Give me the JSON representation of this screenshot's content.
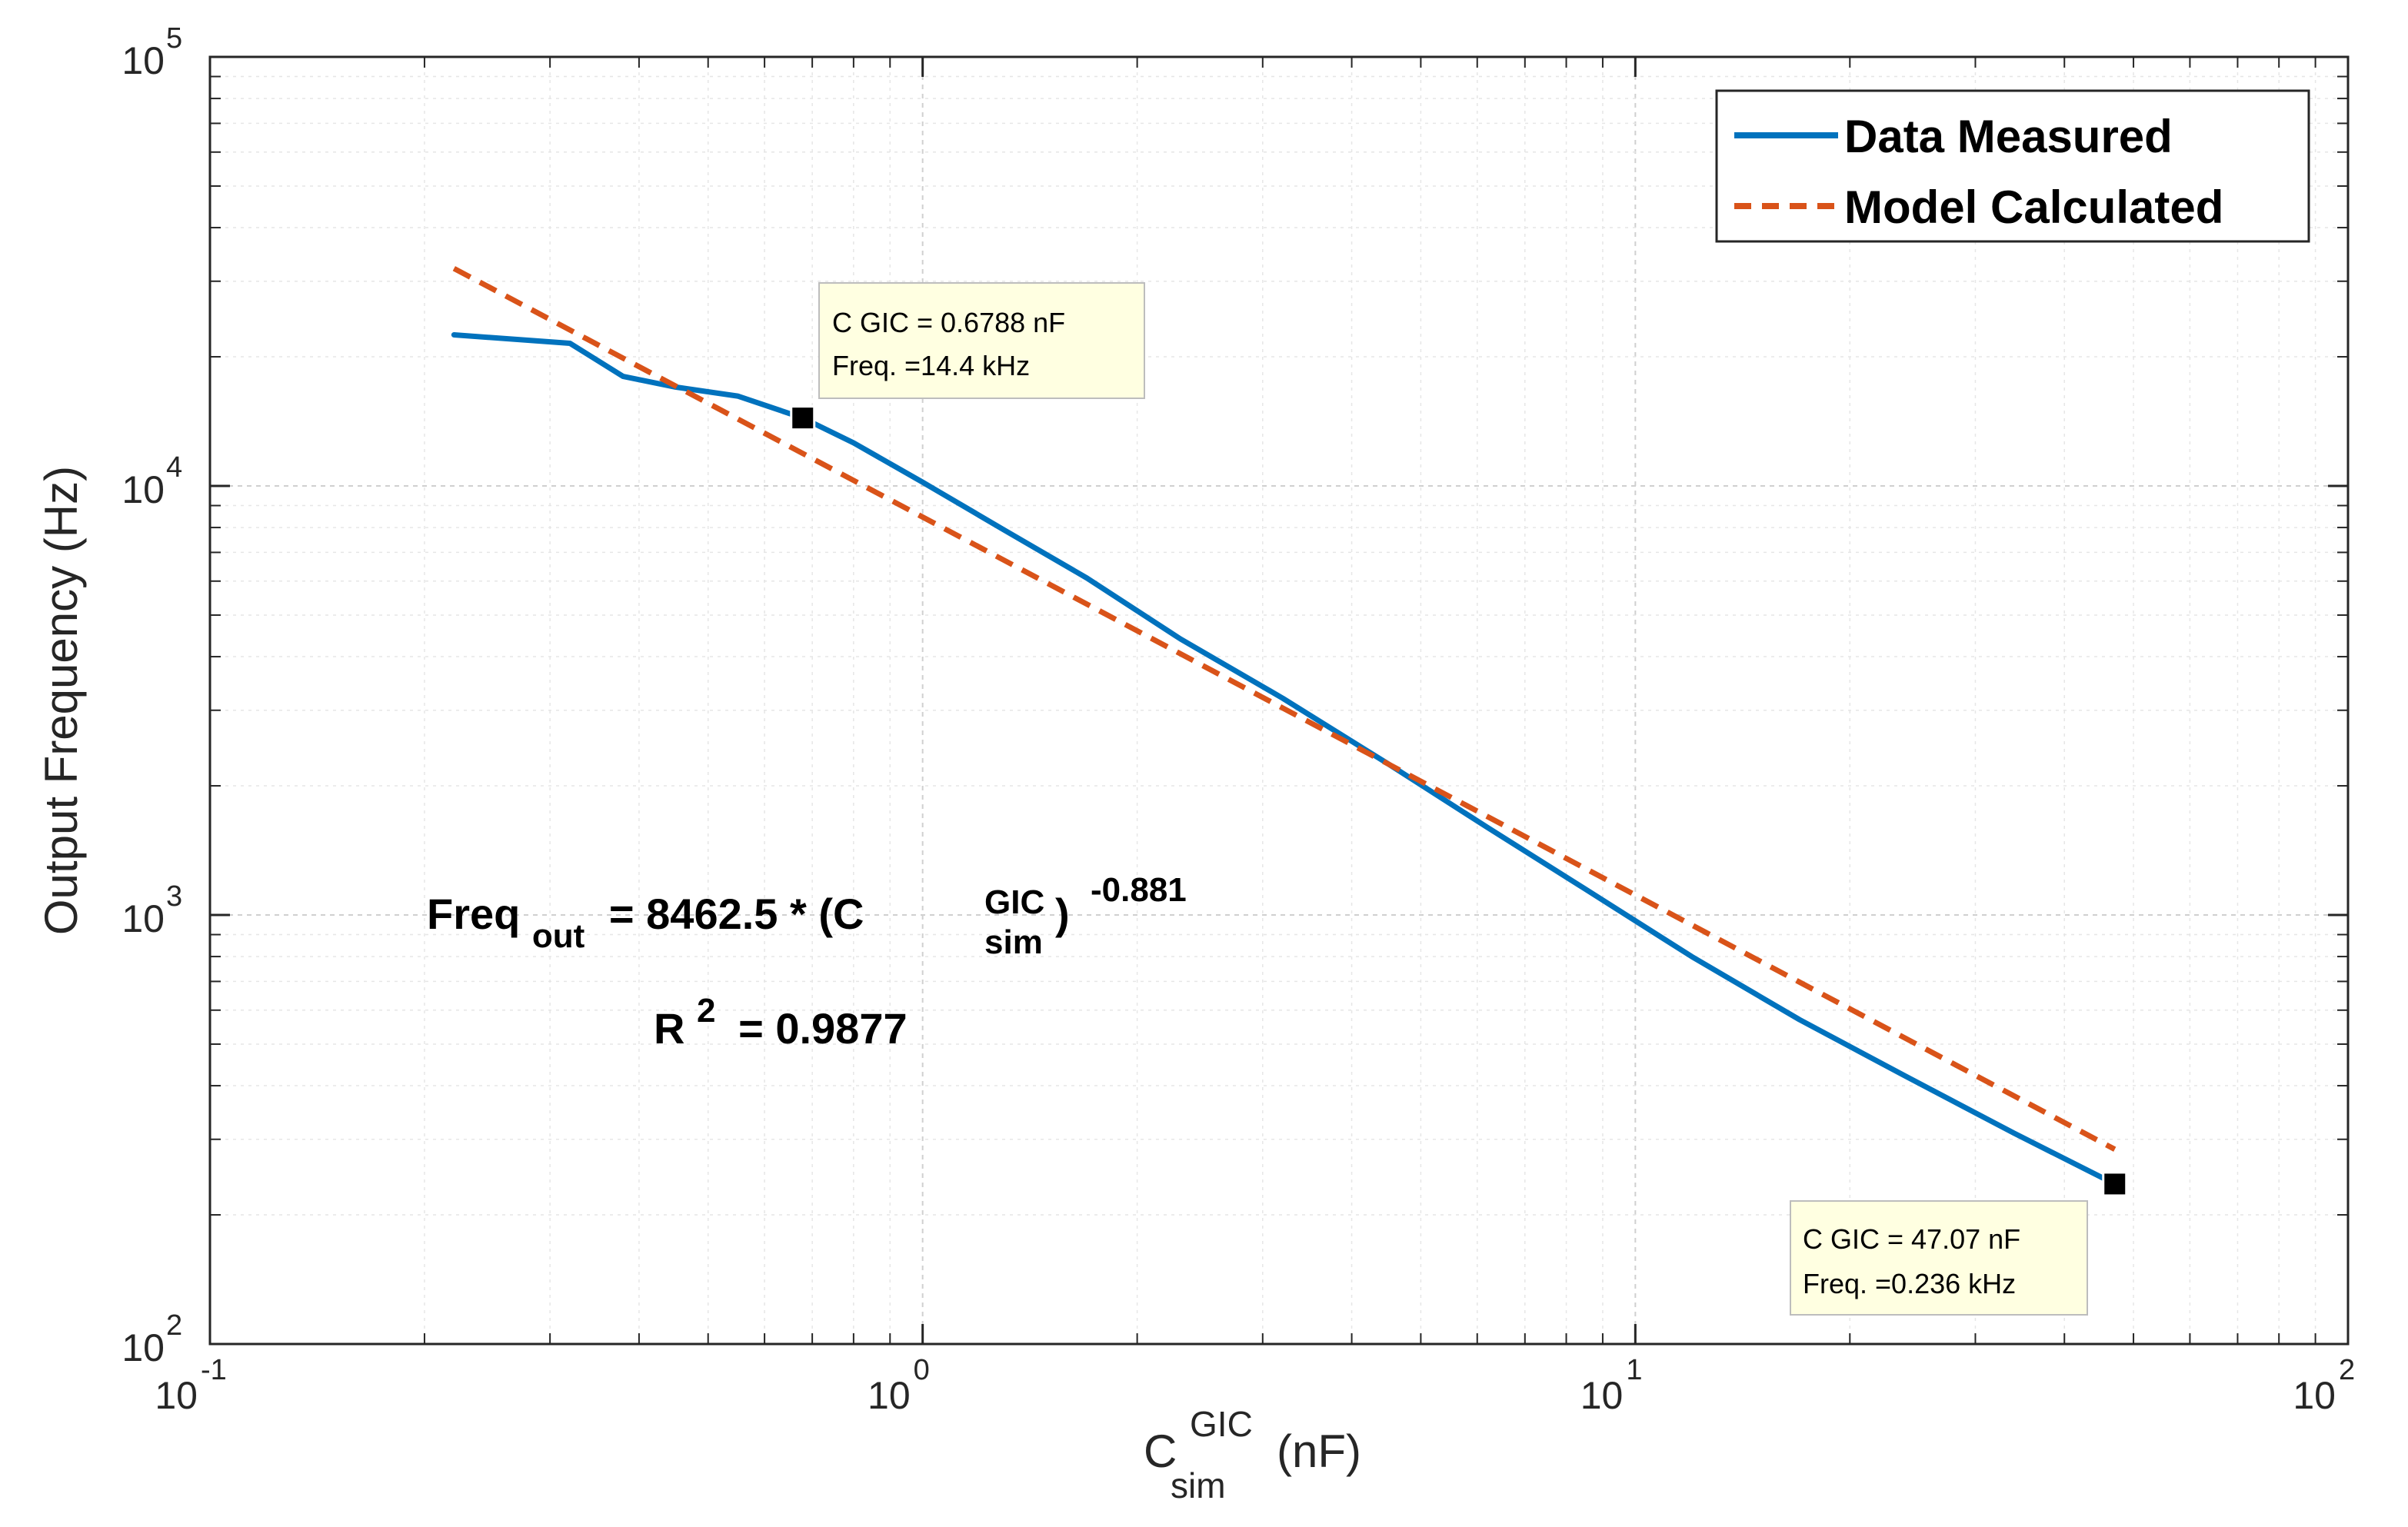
{
  "chart_data": {
    "type": "line",
    "xscale": "log",
    "yscale": "log",
    "xlim": [
      0.1,
      100
    ],
    "ylim": [
      100,
      100000
    ],
    "grid": true,
    "x_ticks": [
      {
        "base": "10",
        "exp": "-1",
        "value": 0.1
      },
      {
        "base": "10",
        "exp": "0",
        "value": 1
      },
      {
        "base": "10",
        "exp": "1",
        "value": 10
      },
      {
        "base": "10",
        "exp": "2",
        "value": 100
      }
    ],
    "y_ticks": [
      {
        "base": "10",
        "exp": "2",
        "value": 100
      },
      {
        "base": "10",
        "exp": "3",
        "value": 1000
      },
      {
        "base": "10",
        "exp": "4",
        "value": 10000
      },
      {
        "base": "10",
        "exp": "5",
        "value": 100000
      }
    ],
    "xlabel": {
      "main": "C",
      "sup": "GIC",
      "sub": "sim",
      "unit": " (nF)"
    },
    "ylabel": "Output Frequency (Hz)",
    "legend_position": "top-right",
    "series": [
      {
        "name": "Data Measured",
        "color": "#0072BD",
        "style": "solid",
        "x": [
          0.22,
          0.32,
          0.38,
          0.45,
          0.55,
          0.6788,
          0.8,
          1.0,
          1.3,
          1.7,
          2.3,
          3.2,
          4.5,
          6.2,
          8.5,
          12.0,
          17.0,
          24.0,
          34.0,
          47.07
        ],
        "y": [
          22500,
          21500,
          18000,
          17000,
          16200,
          14400,
          12600,
          10200,
          7900,
          6100,
          4400,
          3200,
          2250,
          1600,
          1150,
          800,
          570,
          420,
          310,
          236
        ]
      },
      {
        "name": "Model Calculated",
        "color": "#D95319",
        "style": "dashed",
        "x": [
          0.22,
          47.07
        ],
        "fit": {
          "a": 8462.5,
          "b": -0.881
        }
      }
    ],
    "annotations": {
      "equation": {
        "lhs_main": "Freq",
        "lhs_sub": "out",
        "rhs_prefix": "= 8462.5 * (C",
        "rhs_sup": "GIC",
        "rhs_sub": "sim",
        "rhs_close": ")",
        "exponent": "-0.881"
      },
      "r_squared": {
        "main": "R",
        "sup": "2",
        "rest": "= 0.9877"
      }
    },
    "datatips": [
      {
        "x": 0.6788,
        "y": 14400,
        "line1": "C GIC  = 0.6788 nF",
        "line2": "Freq. =14.4 kHz"
      },
      {
        "x": 47.07,
        "y": 236,
        "line1": "C GIC  = 47.07 nF",
        "line2": "Freq. =0.236 kHz"
      }
    ]
  }
}
